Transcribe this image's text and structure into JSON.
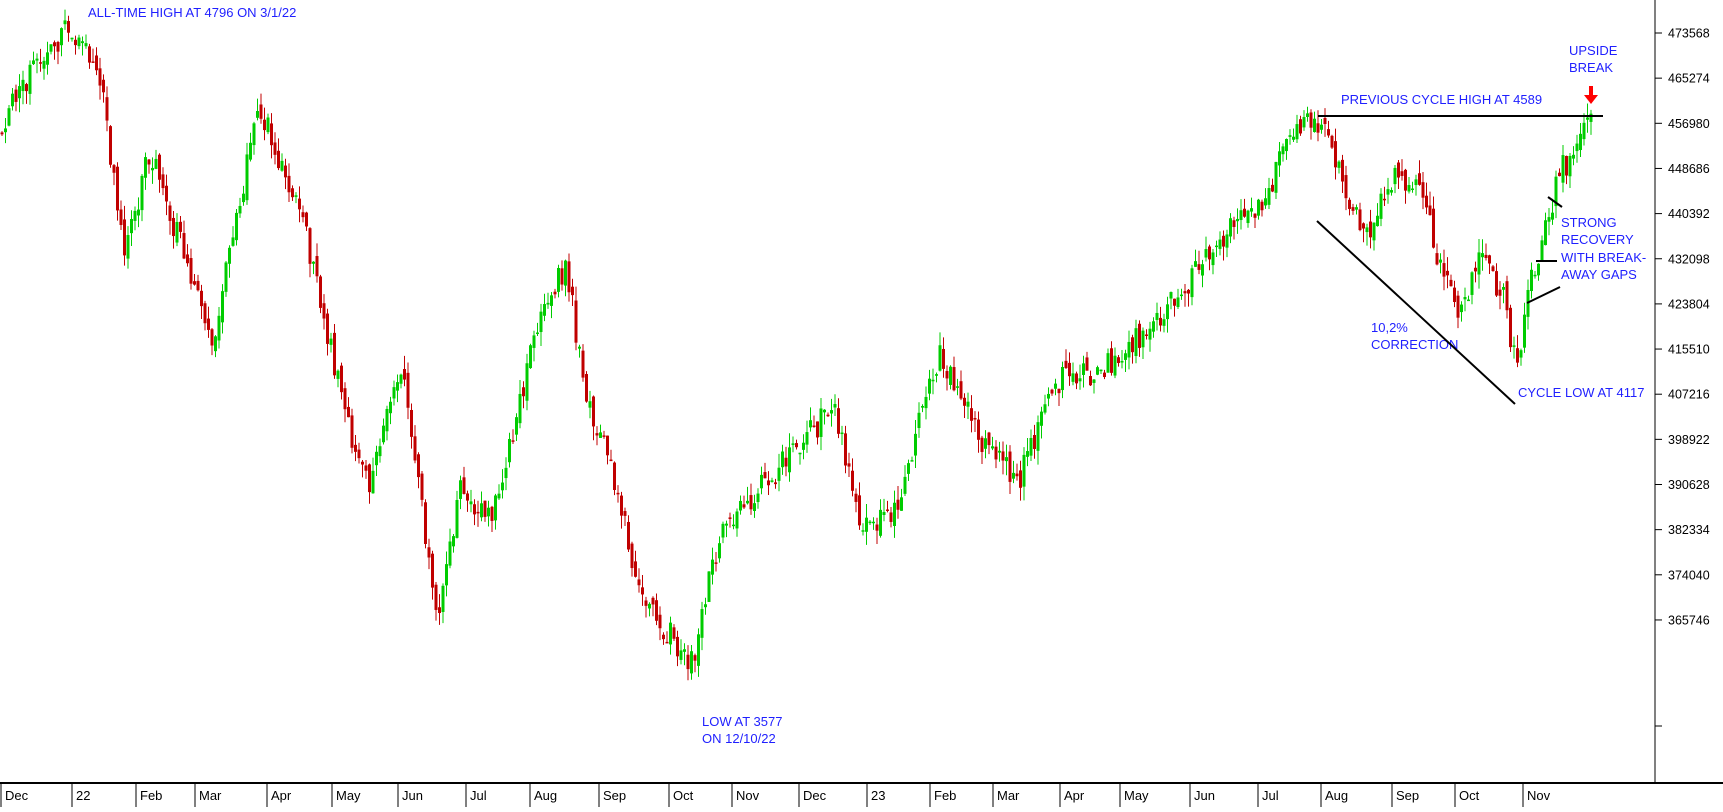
{
  "chart_data": {
    "type": "candlestick",
    "title": "",
    "xlabel": "",
    "ylabel": "",
    "y_axis_side": "right",
    "grid": false,
    "ylim": [
      354000,
      478000
    ],
    "y_ticks": [
      473568,
      465274,
      456980,
      448686,
      440392,
      432098,
      423804,
      415510,
      407216,
      398922,
      390628,
      382334,
      374040,
      365746
    ],
    "x_ticks": [
      "Dec",
      "22",
      "Feb",
      "Mar",
      "Apr",
      "May",
      "Jun",
      "Jul",
      "Aug",
      "Sep",
      "Oct",
      "Nov",
      "Dec",
      "23",
      "Feb",
      "Mar",
      "Apr",
      "May",
      "Jun",
      "Jul",
      "Aug",
      "Sep",
      "Oct",
      "Nov"
    ],
    "colors": {
      "up": "#00cc00",
      "down": "#c00000",
      "annotation": "#1f1fff",
      "arrow": "#ff0000",
      "lines": "#000000"
    },
    "path_points": [
      {
        "x": "Dec",
        "y": 456000
      },
      {
        "x": "Dec",
        "y": 468000
      },
      {
        "x": "22",
        "y": 475000
      },
      {
        "x": "22",
        "y": 466000
      },
      {
        "x": "Feb",
        "y": 432000
      },
      {
        "x": "Feb",
        "y": 452000
      },
      {
        "x": "Mar",
        "y": 428000
      },
      {
        "x": "Mar",
        "y": 418000
      },
      {
        "x": "Apr",
        "y": 460000
      },
      {
        "x": "Apr",
        "y": 442000
      },
      {
        "x": "May",
        "y": 425000
      },
      {
        "x": "May",
        "y": 400000
      },
      {
        "x": "Jun",
        "y": 390000
      },
      {
        "x": "Jun",
        "y": 413000
      },
      {
        "x": "Jun",
        "y": 365000
      },
      {
        "x": "Jul",
        "y": 390000
      },
      {
        "x": "Jul",
        "y": 384000
      },
      {
        "x": "Aug",
        "y": 420000
      },
      {
        "x": "Aug",
        "y": 431000
      },
      {
        "x": "Aug",
        "y": 408000
      },
      {
        "x": "Sep",
        "y": 395000
      },
      {
        "x": "Sep",
        "y": 370000
      },
      {
        "x": "Oct",
        "y": 357700
      },
      {
        "x": "Oct",
        "y": 382000
      },
      {
        "x": "Nov",
        "y": 390000
      },
      {
        "x": "Nov",
        "y": 398000
      },
      {
        "x": "Dec",
        "y": 405000
      },
      {
        "x": "Dec",
        "y": 384000
      },
      {
        "x": "23",
        "y": 385000
      },
      {
        "x": "23",
        "y": 403000
      },
      {
        "x": "Feb",
        "y": 414000
      },
      {
        "x": "Feb",
        "y": 408000
      },
      {
        "x": "Mar",
        "y": 397000
      },
      {
        "x": "Mar",
        "y": 392000
      },
      {
        "x": "Apr",
        "y": 410000
      },
      {
        "x": "May",
        "y": 412000
      },
      {
        "x": "May",
        "y": 418000
      },
      {
        "x": "Jun",
        "y": 428000
      },
      {
        "x": "Jun",
        "y": 437000
      },
      {
        "x": "Jul",
        "y": 441000
      },
      {
        "x": "Jul",
        "y": 454000
      },
      {
        "x": "Jul",
        "y": 458900
      },
      {
        "x": "Aug",
        "y": 448000
      },
      {
        "x": "Aug",
        "y": 436000
      },
      {
        "x": "Sep",
        "y": 448000
      },
      {
        "x": "Sep",
        "y": 445000
      },
      {
        "x": "Sep",
        "y": 430000
      },
      {
        "x": "Sep",
        "y": 423000
      },
      {
        "x": "Oct",
        "y": 432000
      },
      {
        "x": "Oct",
        "y": 424000
      },
      {
        "x": "Oct",
        "y": 411700
      },
      {
        "x": "Nov",
        "y": 425000
      },
      {
        "x": "Nov",
        "y": 434000
      },
      {
        "x": "Nov",
        "y": 440000
      },
      {
        "x": "Nov",
        "y": 448000
      },
      {
        "x": "Nov",
        "y": 456500
      }
    ],
    "annotations": [
      {
        "text": "ALL-TIME HIGH AT 4796 ON 3/1/22"
      },
      {
        "text": "LOW AT 3577"
      },
      {
        "text": "ON 12/10/22"
      },
      {
        "text": "PREVIOUS CYCLE HIGH AT 4589"
      },
      {
        "text": "UPSIDE"
      },
      {
        "text": "BREAK"
      },
      {
        "text": "STRONG"
      },
      {
        "text": "RECOVERY"
      },
      {
        "text": "WITH BREAK-"
      },
      {
        "text": "AWAY GAPS"
      },
      {
        "text": "10,2%"
      },
      {
        "text": "CORRECTION"
      },
      {
        "text": "CYCLE LOW AT 4117"
      }
    ]
  }
}
